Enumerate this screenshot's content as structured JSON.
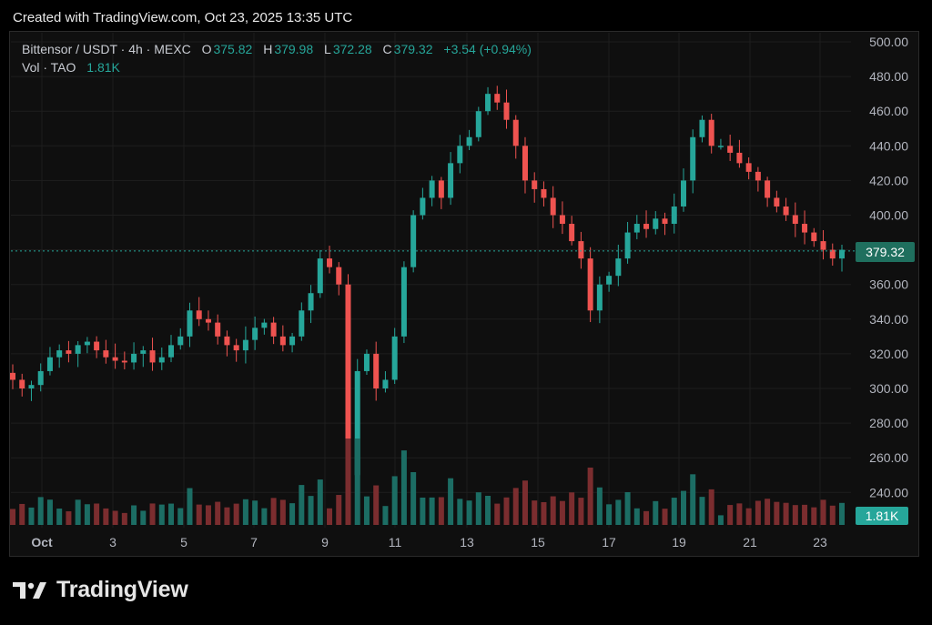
{
  "header": "Created with TradingView.com, Oct 23, 2025 13:35 UTC",
  "legend": {
    "symbol": "Bittensor / USDT · 4h · MEXC",
    "o_label": "O",
    "o_value": "375.82",
    "h_label": "H",
    "h_value": "379.98",
    "l_label": "L",
    "l_value": "372.28",
    "c_label": "C",
    "c_value": "379.32",
    "change": "+3.54 (+0.94%)",
    "vol_label": "Vol · TAO",
    "vol_value": "1.81K"
  },
  "last_price_label": "379.32",
  "last_volume_label": "1.81K",
  "brand": "TradingView",
  "colors": {
    "up": "#26a69a",
    "down": "#ef5350",
    "up_volume": "#1c6d64",
    "down_volume": "#7b2d2f",
    "background": "#0f0f0f",
    "grid": "#1e1e1e"
  },
  "chart_data": {
    "type": "candlestick",
    "interval": "4h",
    "y_ticks": [
      "500.00",
      "480.00",
      "460.00",
      "440.00",
      "420.00",
      "400.00",
      "380.00",
      "360.00",
      "340.00",
      "320.00",
      "300.00",
      "280.00",
      "260.00",
      "240.00"
    ],
    "ylim": [
      240,
      500
    ],
    "x_ticks": [
      "Oct",
      "3",
      "5",
      "7",
      "9",
      "11",
      "13",
      "15",
      "17",
      "19",
      "21",
      "23"
    ],
    "close_series": [
      305,
      300,
      302,
      310,
      318,
      322,
      320,
      325,
      327,
      322,
      318,
      316,
      315,
      320,
      322,
      315,
      318,
      325,
      330,
      345,
      340,
      338,
      330,
      325,
      322,
      328,
      335,
      338,
      330,
      325,
      330,
      345,
      355,
      375,
      370,
      360,
      250,
      310,
      320,
      300,
      305,
      330,
      370,
      400,
      410,
      420,
      410,
      430,
      440,
      445,
      460,
      470,
      465,
      455,
      440,
      420,
      415,
      410,
      400,
      395,
      385,
      375,
      345,
      360,
      365,
      375,
      390,
      395,
      392,
      398,
      395,
      405,
      420,
      445,
      455,
      440,
      440,
      436,
      430,
      425,
      420,
      410,
      405,
      400,
      395,
      390,
      385,
      380,
      375,
      380
    ]
  }
}
